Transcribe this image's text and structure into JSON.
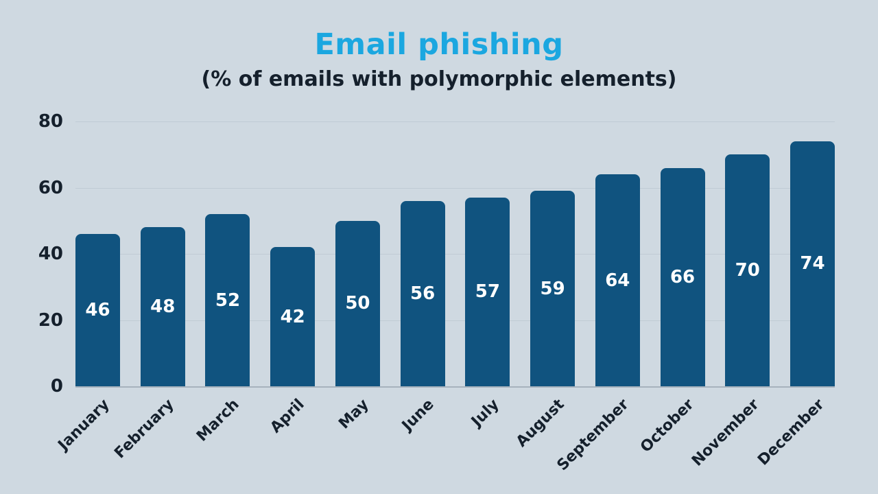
{
  "title": "Email phishing",
  "subtitle": "(% of emails with polymorphic elements)",
  "colors": {
    "background": "#CFD9E1",
    "bar": "#10537F",
    "title": "#1BA7E0",
    "text_dark": "#15202C",
    "value_label": "#FFFFFF",
    "gridline": "#C0CBD4",
    "baseline": "#A6B2BD"
  },
  "chart_data": {
    "type": "bar",
    "title": "Email phishing",
    "subtitle": "(% of emails with polymorphic elements)",
    "categories": [
      "January",
      "February",
      "March",
      "April",
      "May",
      "June",
      "July",
      "August",
      "September",
      "October",
      "November",
      "December"
    ],
    "values": [
      46,
      48,
      52,
      42,
      50,
      56,
      57,
      59,
      64,
      66,
      70,
      74
    ],
    "xlabel": "",
    "ylabel": "",
    "ylim": [
      0,
      80
    ],
    "yticks": [
      0,
      20,
      40,
      60,
      80
    ],
    "grid": true,
    "legend": "none",
    "bar_label_position": "inside-center",
    "x_tick_rotation": -45
  }
}
